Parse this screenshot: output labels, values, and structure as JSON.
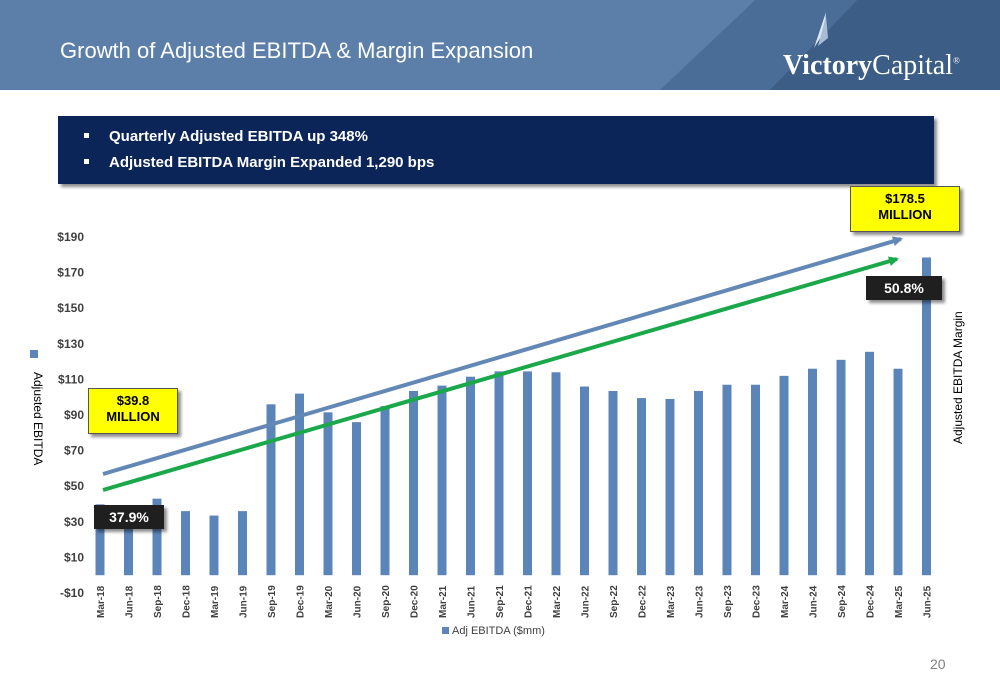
{
  "header": {
    "title": "Growth of Adjusted EBITDA & Margin Expansion",
    "logo_text_bold": "Victory",
    "logo_text_regular": "Capital",
    "logo_registered": "®"
  },
  "banner": {
    "items": [
      "Quarterly Adjusted EBITDA up 348%",
      "Adjusted EBITDA Margin Expanded 1,290 bps"
    ]
  },
  "callouts": {
    "start_value_line1": "$39.8",
    "start_value_line2": "MILLION",
    "end_value_line1": "$178.5",
    "end_value_line2": "MILLION",
    "start_margin": "37.9%",
    "end_margin": "50.8%"
  },
  "page_number": "20",
  "colors": {
    "bar": "#5b84b9",
    "header_bg": "#5b7fa9",
    "banner_bg": "#0b2559",
    "arrow_blue": "#6388b6",
    "arrow_green": "#1aa84a",
    "callout_yellow": "#ffff00",
    "callout_black": "#1f1f1f"
  },
  "chart_data": {
    "type": "bar",
    "categories": [
      "Mar-18",
      "Jun-18",
      "Sep-18",
      "Dec-18",
      "Mar-19",
      "Jun-19",
      "Sep-19",
      "Dec-19",
      "Mar-20",
      "Jun-20",
      "Sep-20",
      "Dec-20",
      "Mar-21",
      "Jun-21",
      "Sep-21",
      "Dec-21",
      "Mar-22",
      "Jun-22",
      "Sep-22",
      "Dec-22",
      "Mar-23",
      "Jun-23",
      "Sep-23",
      "Dec-23",
      "Mar-24",
      "Jun-24",
      "Sep-24",
      "Dec-24",
      "Mar-25",
      "Jun-25"
    ],
    "series": [
      {
        "name": "Adj EBITDA ($mm)",
        "values": [
          39.8,
          39.0,
          43.0,
          36.0,
          33.5,
          36.0,
          96.0,
          102.0,
          91.5,
          86.0,
          95.0,
          103.5,
          106.5,
          111.5,
          114.5,
          114.5,
          114.0,
          106.0,
          103.5,
          99.5,
          99.0,
          103.5,
          107.0,
          107.0,
          112.0,
          116.0,
          121.0,
          125.5,
          116.0,
          178.5
        ]
      }
    ],
    "ylabel": "Adjusted EBITDA",
    "y2label": "Adjusted EBITDA Margin",
    "yticks": [
      "-$10",
      "$10",
      "$30",
      "$50",
      "$70",
      "$90",
      "$110",
      "$130",
      "$150",
      "$170",
      "$190"
    ],
    "ylim": [
      -10,
      190
    ],
    "legend": "bottom",
    "grid": false
  }
}
